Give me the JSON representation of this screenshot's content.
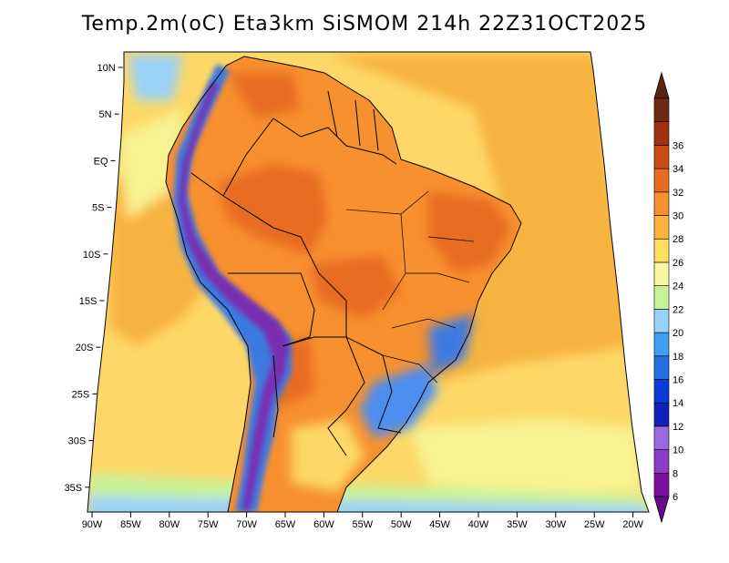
{
  "title": "Temp.2m(oC) Eta3km SiSMOM 214h 22Z31OCT2025",
  "lat_labels": [
    "10N",
    "5N",
    "EQ",
    "5S",
    "10S",
    "15S",
    "20S",
    "25S",
    "30S",
    "35S"
  ],
  "lon_labels": [
    "90W",
    "85W",
    "80W",
    "75W",
    "70W",
    "65W",
    "60W",
    "55W",
    "50W",
    "45W",
    "40W",
    "35W",
    "30W",
    "25W",
    "20W"
  ],
  "colorbar": {
    "labels": [
      "6",
      "8",
      "10",
      "12",
      "14",
      "16",
      "18",
      "20",
      "22",
      "24",
      "26",
      "28",
      "30",
      "32",
      "34",
      "36"
    ],
    "colors": [
      "#7a0fa0",
      "#8a3ec8",
      "#9a68e0",
      "#1020b8",
      "#0c3ad6",
      "#2470e0",
      "#3e9ff2",
      "#9ad2f8",
      "#c8f29a",
      "#f8f8a0",
      "#fde060",
      "#fcb43c",
      "#f7902e",
      "#e86c20",
      "#c84c14",
      "#a03010",
      "#6e2a12"
    ],
    "end_low_color": "#6a0a8a",
    "end_high_color": "#5a2412"
  },
  "map_colors": {
    "ocean_warm": "#f8b440",
    "ocean_mild": "#fdd868",
    "ocean_cool": "#f8f290",
    "ocean_cold": "#c8f29a",
    "ocean_coldest": "#9ad2f8",
    "land_hot": "#e86c20",
    "land_warm": "#f7902e",
    "andes_cold": "#7a2fb0",
    "andes_cool": "#3e7ae0",
    "south_cold": "#4c8ef0",
    "borders": "#000000"
  }
}
